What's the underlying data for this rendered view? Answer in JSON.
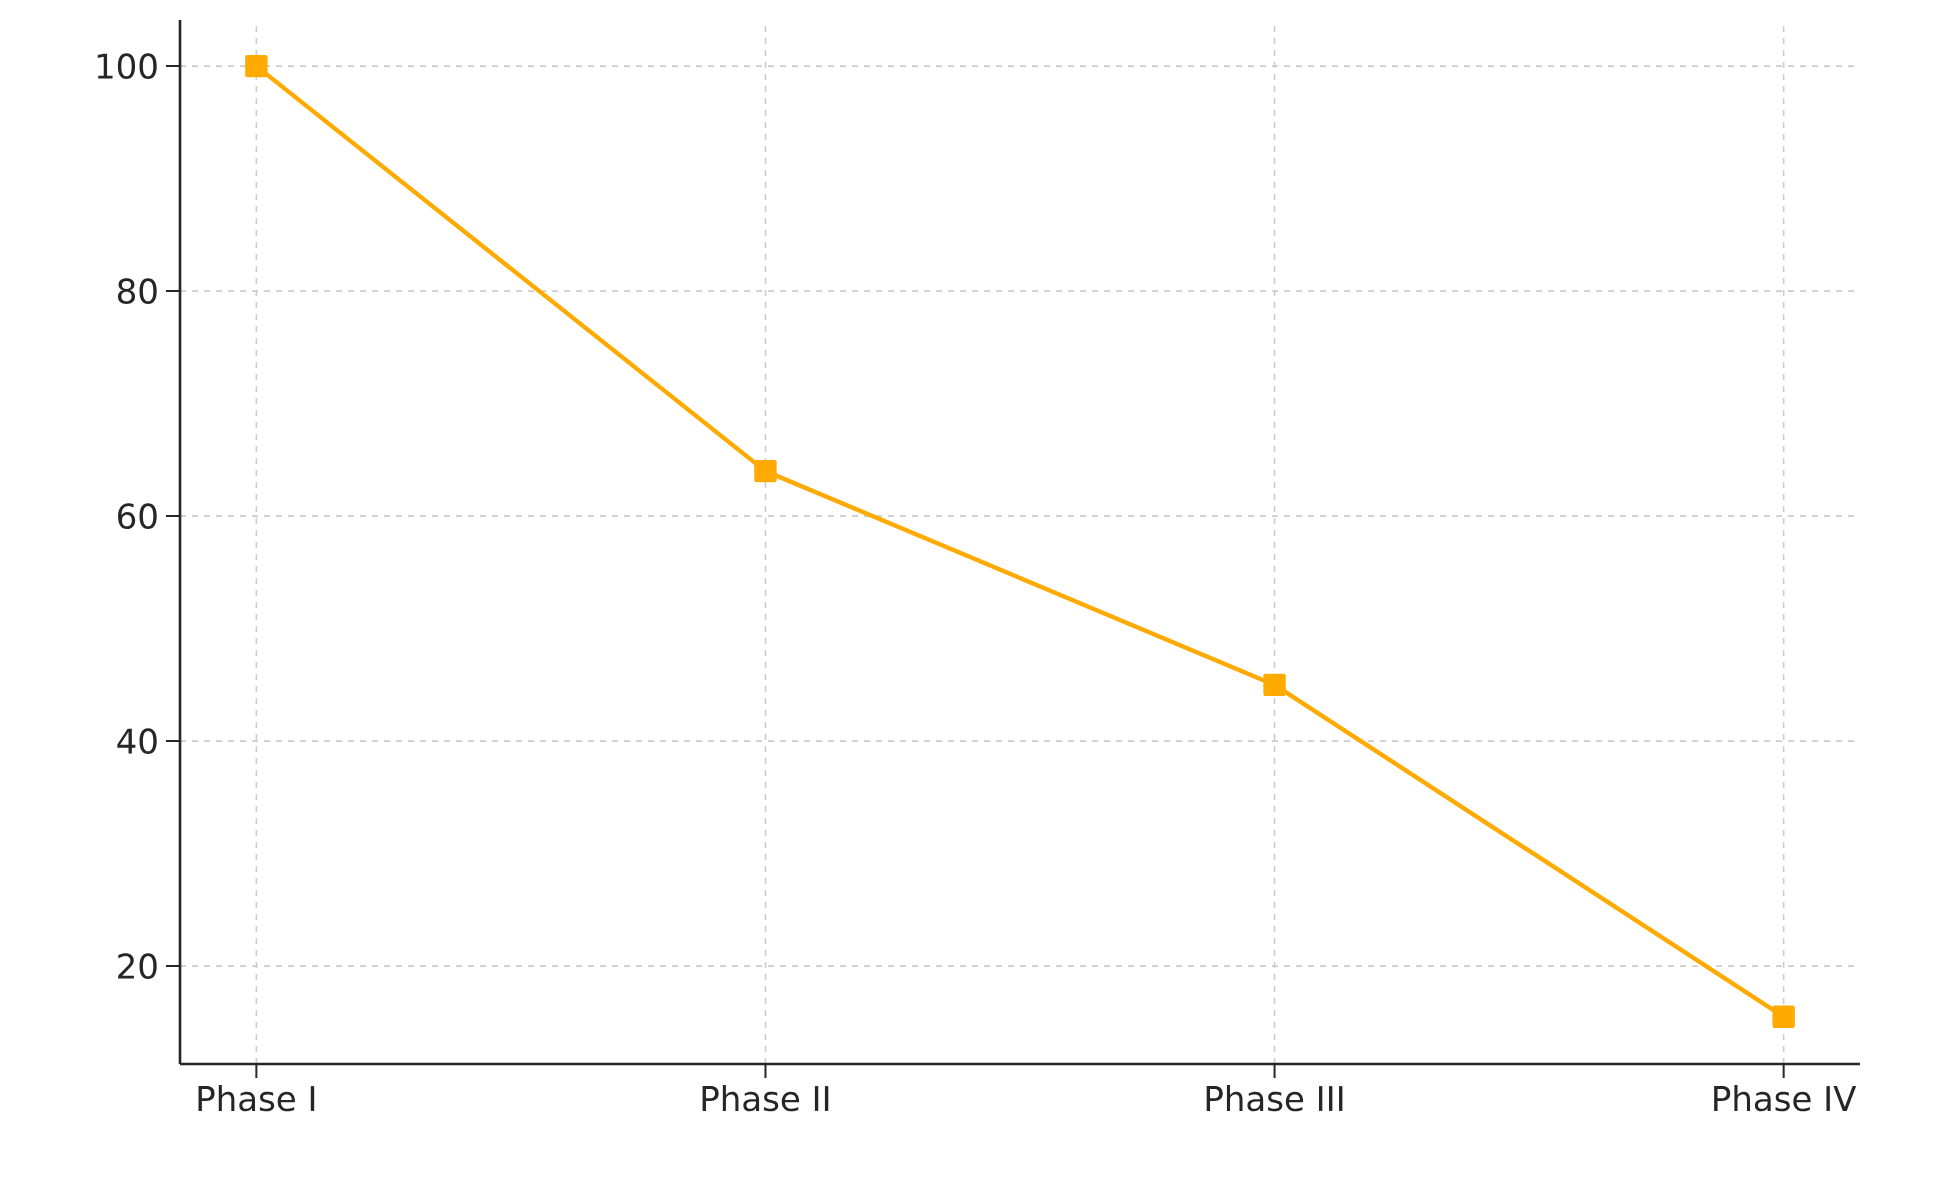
{
  "chart_data": {
    "type": "line",
    "categories": [
      "Phase I",
      "Phase II",
      "Phase III",
      "Phase IV"
    ],
    "series": [
      {
        "color": "#ffaa00",
        "values": [
          100,
          64,
          45,
          15.5
        ]
      }
    ],
    "ylim": [
      11.3,
      104.1
    ],
    "yticks": [
      20,
      40,
      60,
      80,
      100
    ],
    "grid": true,
    "marker": "square",
    "line_style": "solid"
  }
}
